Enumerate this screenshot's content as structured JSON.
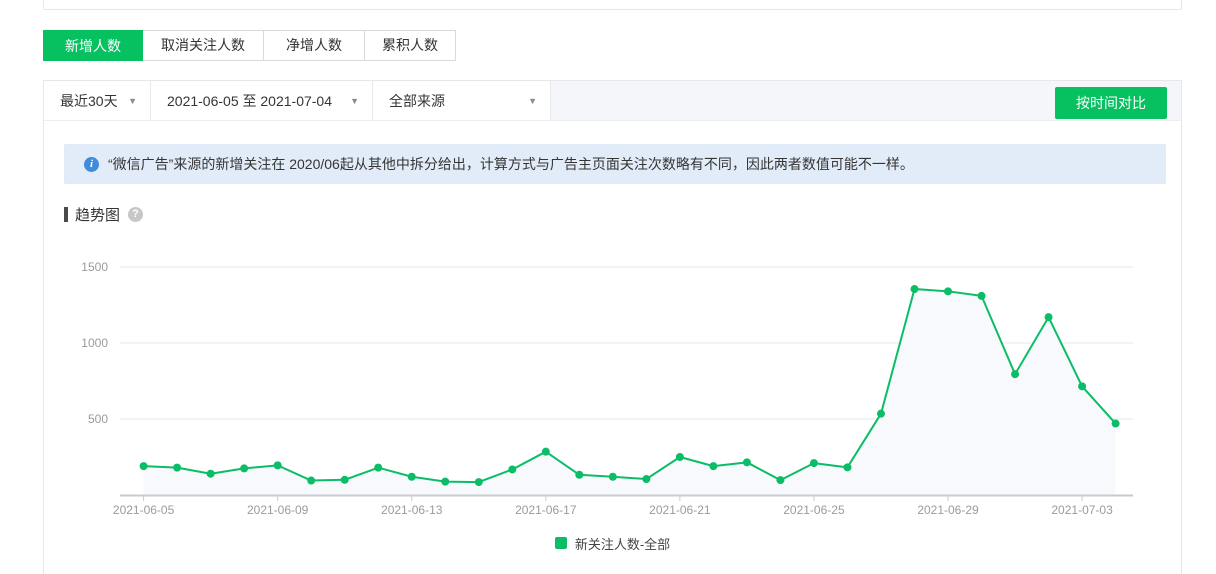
{
  "page": {
    "accent_green": "#07c160"
  },
  "tabs": [
    {
      "label": "新增人数",
      "active": true
    },
    {
      "label": "取消关注人数",
      "active": false
    },
    {
      "label": "净增人数",
      "active": false
    },
    {
      "label": "累积人数",
      "active": false
    }
  ],
  "filter_bar": {
    "time_range": "最近30天",
    "date_range": "2021-06-05 至 2021-07-04",
    "source": "全部来源",
    "compare_button": "按时间对比",
    "caret": "▼"
  },
  "notice": {
    "icon": "info-icon",
    "text": "“微信广告”来源的新增关注在 2020/06起从其他中拆分给出，计算方式与广告主页面关注次数略有不同，因此两者数值可能不一样。"
  },
  "section": {
    "title": "趋势图",
    "help_icon": "?"
  },
  "chart_data": {
    "type": "line",
    "title": "趋势图",
    "legend_position": "bottom",
    "grid": true,
    "ylim": [
      0,
      1500
    ],
    "yticks": [
      500,
      1000,
      1500
    ],
    "x_label_interval": 4,
    "x": [
      "2021-06-05",
      "2021-06-06",
      "2021-06-07",
      "2021-06-08",
      "2021-06-09",
      "2021-06-10",
      "2021-06-11",
      "2021-06-12",
      "2021-06-13",
      "2021-06-14",
      "2021-06-15",
      "2021-06-16",
      "2021-06-17",
      "2021-06-18",
      "2021-06-19",
      "2021-06-20",
      "2021-06-21",
      "2021-06-22",
      "2021-06-23",
      "2021-06-24",
      "2021-06-25",
      "2021-06-26",
      "2021-06-27",
      "2021-06-28",
      "2021-06-29",
      "2021-06-30",
      "2021-07-01",
      "2021-07-02",
      "2021-07-03",
      "2021-07-04"
    ],
    "series": [
      {
        "name": "新关注人数-全部",
        "color": "#0abd66",
        "area_fill": "#f7f9fc",
        "values": [
          190,
          180,
          140,
          175,
          195,
          95,
          100,
          180,
          120,
          88,
          85,
          168,
          285,
          133,
          120,
          105,
          250,
          190,
          215,
          98,
          210,
          182,
          535,
          1355,
          1340,
          1310,
          795,
          1170,
          715,
          470
        ]
      }
    ],
    "legend": [
      {
        "name": "新关注人数-全部",
        "color": "#0abd66"
      }
    ],
    "axis_colors": {
      "grid": "#e9eaee",
      "axis": "#c7cacf",
      "tick_label": "#9b9b9b"
    }
  }
}
